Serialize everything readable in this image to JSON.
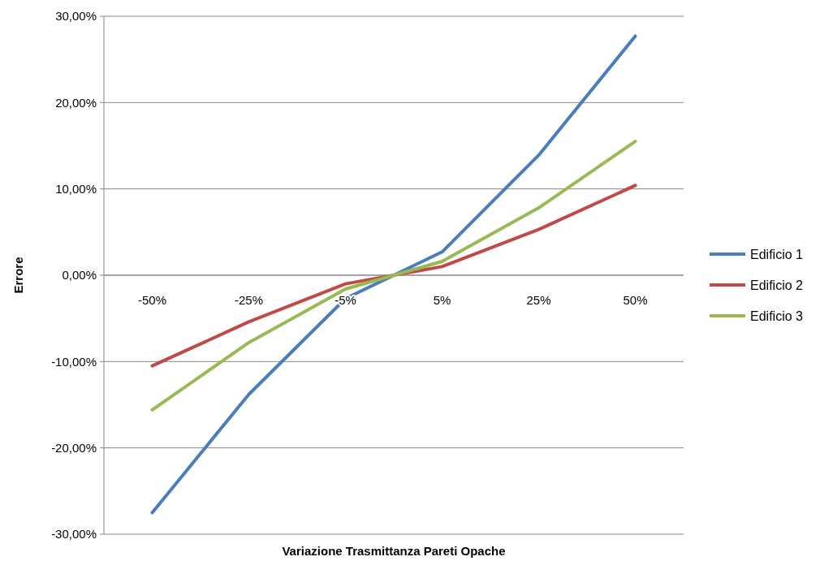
{
  "chart_data": {
    "type": "line",
    "xlabel": "Variazione Trasmittanza Pareti Opache",
    "ylabel": "Errore",
    "categories": [
      "-50%",
      "-25%",
      "-5%",
      "5%",
      "25%",
      "50%"
    ],
    "series": [
      {
        "name": "Edificio 1",
        "color": "#4a7ebb",
        "values": [
          -27.5,
          -13.8,
          -2.7,
          2.7,
          13.9,
          27.7
        ]
      },
      {
        "name": "Edificio 2",
        "color": "#be4b48",
        "values": [
          -10.5,
          -5.4,
          -1.0,
          1.0,
          5.3,
          10.4
        ]
      },
      {
        "name": "Edificio 3",
        "color": "#98b954",
        "values": [
          -15.6,
          -7.8,
          -1.6,
          1.6,
          7.8,
          15.5
        ]
      }
    ],
    "ylim": [
      -30,
      30
    ],
    "yticks": [
      {
        "value": -30,
        "label": "-30,00%"
      },
      {
        "value": -20,
        "label": "-20,00%"
      },
      {
        "value": -10,
        "label": "-10,00%"
      },
      {
        "value": 0,
        "label": "0,00%"
      },
      {
        "value": 10,
        "label": "10,00%"
      },
      {
        "value": 20,
        "label": "20,00%"
      },
      {
        "value": 30,
        "label": "30,00%"
      }
    ],
    "grid": "y",
    "legend": "right",
    "marker": "none",
    "line_style": "solid"
  }
}
